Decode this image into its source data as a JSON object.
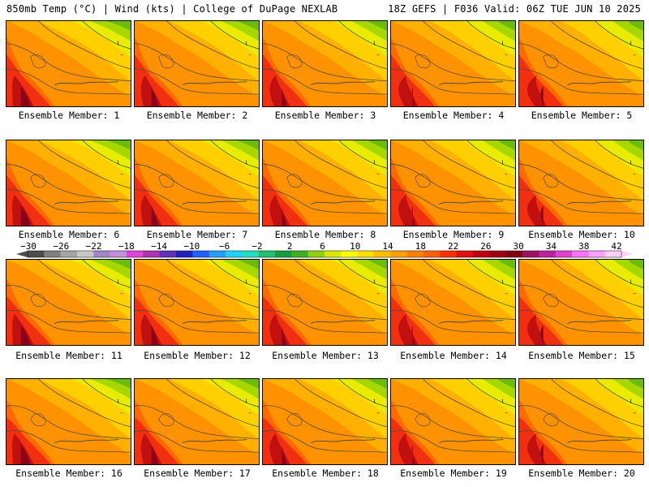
{
  "header": {
    "left": "850mb Temp (°C) | Wind (kts) | College of DuPage NEXLAB",
    "right": "18Z GEFS | F036 Valid: 06Z TUE JUN 10 2025"
  },
  "members": [
    {
      "label": "Ensemble Member: 1"
    },
    {
      "label": "Ensemble Member: 2"
    },
    {
      "label": "Ensemble Member: 3"
    },
    {
      "label": "Ensemble Member: 4"
    },
    {
      "label": "Ensemble Member: 5"
    },
    {
      "label": "Ensemble Member: 6"
    },
    {
      "label": "Ensemble Member: 7"
    },
    {
      "label": "Ensemble Member: 8"
    },
    {
      "label": "Ensemble Member: 9"
    },
    {
      "label": "Ensemble Member: 10"
    },
    {
      "label": "Ensemble Member: 11"
    },
    {
      "label": "Ensemble Member: 12"
    },
    {
      "label": "Ensemble Member: 13"
    },
    {
      "label": "Ensemble Member: 14"
    },
    {
      "label": "Ensemble Member: 15"
    },
    {
      "label": "Ensemble Member: 16"
    },
    {
      "label": "Ensemble Member: 17"
    },
    {
      "label": "Ensemble Member: 18"
    },
    {
      "label": "Ensemble Member: 19"
    },
    {
      "label": "Ensemble Member: 20"
    }
  ],
  "colorbar": {
    "tick_labels": [
      "−30",
      "−26",
      "−22",
      "−18",
      "−14",
      "−10",
      "−6",
      "−2",
      "2",
      "6",
      "10",
      "14",
      "18",
      "22",
      "26",
      "30",
      "34",
      "38",
      "42"
    ],
    "colors": [
      "#4d4d4d",
      "#7f7f7f",
      "#a6a6a6",
      "#c8c8c8",
      "#9f86c4",
      "#c18fdc",
      "#e040e0",
      "#b030b0",
      "#6030c0",
      "#2020c0",
      "#2060ff",
      "#20a0ff",
      "#20d0ff",
      "#20e0c0",
      "#20c070",
      "#10a040",
      "#40b020",
      "#90d010",
      "#d8e800",
      "#ffff00",
      "#ffe000",
      "#ffc000",
      "#ffa000",
      "#ff8000",
      "#ff6000",
      "#ff3000",
      "#e01010",
      "#c00010",
      "#a00010",
      "#800010",
      "#a01060",
      "#c020a0",
      "#e040d0",
      "#ff70ff",
      "#ffa0ff",
      "#ffd0ff"
    ]
  }
}
